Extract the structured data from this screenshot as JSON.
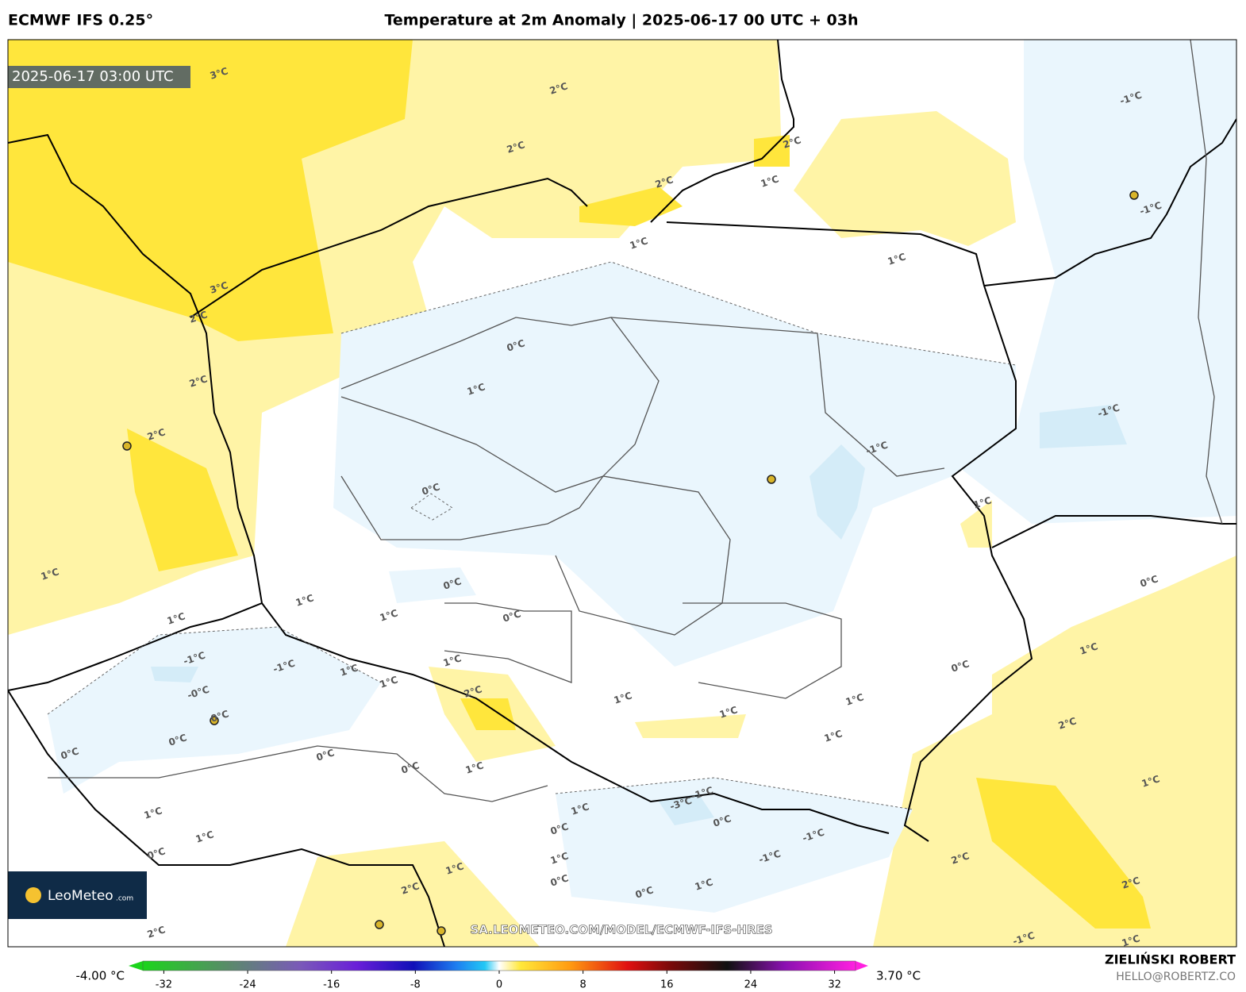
{
  "header": {
    "model": "ECMWF IFS 0.25°",
    "title": "Temperature at 2m Anomaly | 2025-06-17 00 UTC + 03h"
  },
  "map": {
    "timestamp": "2025-06-17 03:00 UTC",
    "watermark": "SA.LEOMETEO.COM/MODEL/ECMWF-IFS-HRES",
    "contour_labels": [
      "3°C",
      "2°C",
      "2°C",
      "-1°C",
      "2°C",
      "2°C",
      "1°C",
      "-1°C",
      "1°C",
      "1°C",
      "3°C",
      "2°C",
      "0°C",
      "2°C",
      "1°C",
      "2°C",
      "-1°C",
      "-1°C",
      "0°C",
      "1°C",
      "1°C",
      "0°C",
      "0°C",
      "1°C",
      "1°C",
      "0°C",
      "1°C",
      "-1°C",
      "-1°C",
      "1°C",
      "1°C",
      "0°C",
      "1°C",
      "1°C",
      "2°C",
      "-0°C",
      "1°C",
      "1°C",
      "0°C",
      "1°C",
      "2°C",
      "0°C",
      "1°C",
      "0°C",
      "0°C",
      "0°C",
      "1°C",
      "1°C",
      "-1°C",
      "-3°C",
      "1°C",
      "1°C",
      "0°C",
      "0°C",
      "-1°C",
      "1°C",
      "0°C",
      "-1°C",
      "1°C",
      "2°C",
      "1°C",
      "0°C",
      "2°C",
      "1°C",
      "0°C",
      "2°C",
      "2°C",
      "1°C",
      "-1°C"
    ]
  },
  "logo": {
    "name": "LeoMeteo",
    "suffix": ".com"
  },
  "colorbar": {
    "min_label": "-4.00 °C",
    "max_label": "3.70 °C",
    "lim": [
      -34,
      34
    ],
    "ticks": [
      -32,
      -24,
      -16,
      -8,
      0,
      8,
      16,
      24,
      32
    ]
  },
  "footer": {
    "author": "ZIELIŃSKI ROBERT",
    "email": "HELLO@ROBERTZ.CO"
  }
}
